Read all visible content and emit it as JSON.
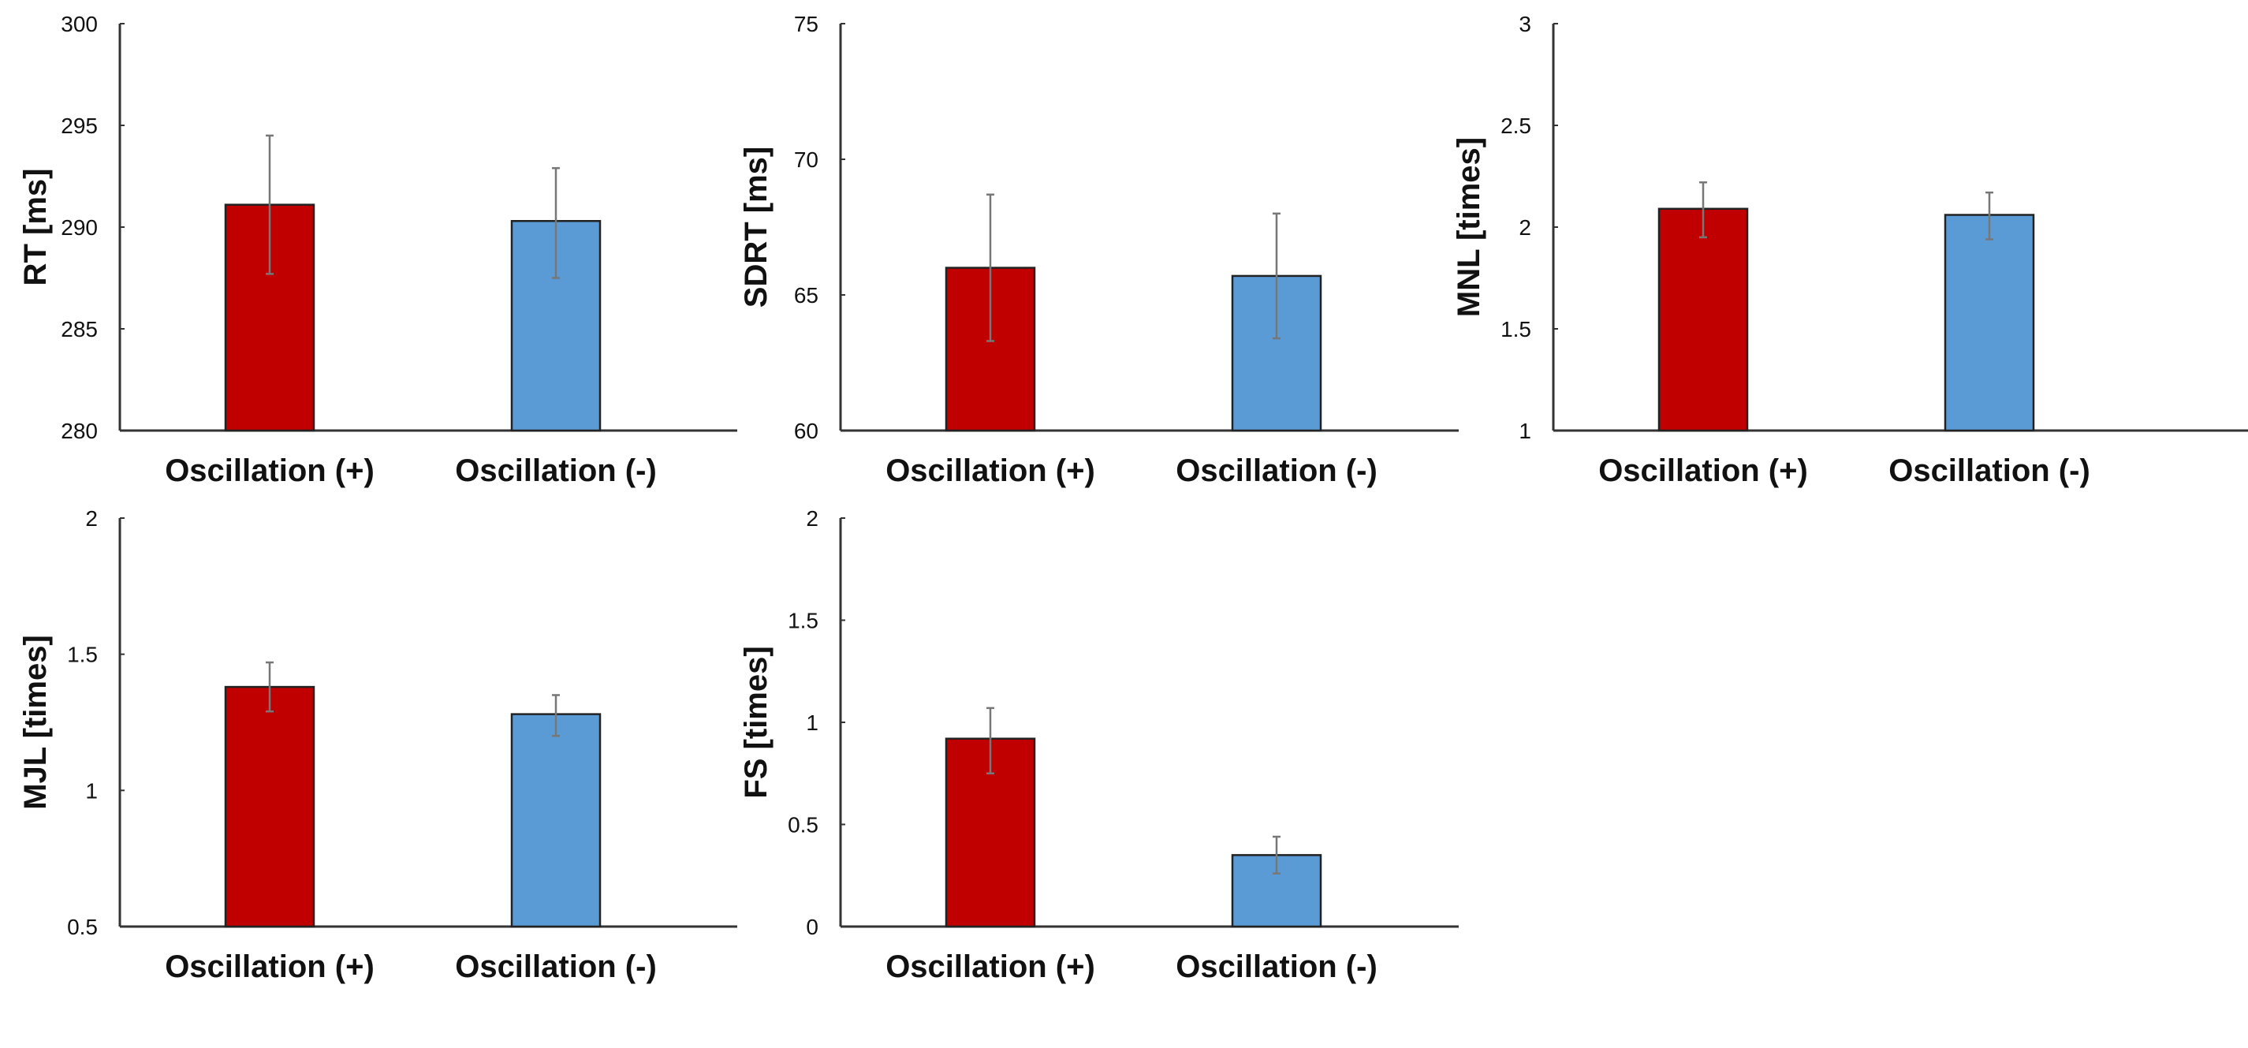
{
  "chart_data": [
    {
      "type": "bar",
      "title": "",
      "ylabel": "RT [ms]",
      "xlabel": "",
      "categories": [
        "Oscillation (+)",
        "Oscillation (-)"
      ],
      "values": [
        291.1,
        290.3
      ],
      "error_low": [
        287.7,
        287.5
      ],
      "error_high": [
        294.5,
        292.9
      ],
      "ylim": [
        280,
        300
      ],
      "yticks": [
        "280",
        "285",
        "290",
        "295",
        "300"
      ],
      "grid": false
    },
    {
      "type": "bar",
      "title": "",
      "ylabel": "SDRT [ms]",
      "xlabel": "",
      "categories": [
        "Oscillation (+)",
        "Oscillation (-)"
      ],
      "values": [
        66.0,
        65.7
      ],
      "error_low": [
        63.3,
        63.4
      ],
      "error_high": [
        68.7,
        68.0
      ],
      "ylim": [
        60,
        75
      ],
      "yticks": [
        "60",
        "65",
        "70",
        "75"
      ],
      "grid": false
    },
    {
      "type": "bar",
      "title": "",
      "ylabel": "MNL [times]",
      "xlabel": "",
      "categories": [
        "Oscillation (+)",
        "Oscillation (-)"
      ],
      "values": [
        2.09,
        2.06
      ],
      "error_low": [
        1.95,
        1.94
      ],
      "error_high": [
        2.22,
        2.17
      ],
      "ylim": [
        1,
        3
      ],
      "yticks": [
        "1",
        "1.5",
        "2",
        "2.5",
        "3"
      ],
      "grid": false
    },
    {
      "type": "bar",
      "title": "",
      "ylabel": "MJL [times]",
      "xlabel": "",
      "categories": [
        "Oscillation (+)",
        "Oscillation (-)"
      ],
      "values": [
        1.38,
        1.28
      ],
      "error_low": [
        1.29,
        1.2
      ],
      "error_high": [
        1.47,
        1.35
      ],
      "ylim": [
        0.5,
        2
      ],
      "yticks": [
        "0.5",
        "1",
        "1.5",
        "2"
      ],
      "grid": false
    },
    {
      "type": "bar",
      "title": "",
      "ylabel": "FS [times]",
      "xlabel": "",
      "categories": [
        "Oscillation (+)",
        "Oscillation (-)"
      ],
      "values": [
        0.92,
        0.35
      ],
      "error_low": [
        0.75,
        0.26
      ],
      "error_high": [
        1.07,
        0.44
      ],
      "ylim": [
        0,
        2
      ],
      "yticks": [
        "0",
        "0.5",
        "1",
        "1.5",
        "2"
      ],
      "grid": false
    }
  ],
  "colors": {
    "positive": "#c00000",
    "negative": "#5b9bd5",
    "axis": "#333333",
    "error": "#777777"
  }
}
